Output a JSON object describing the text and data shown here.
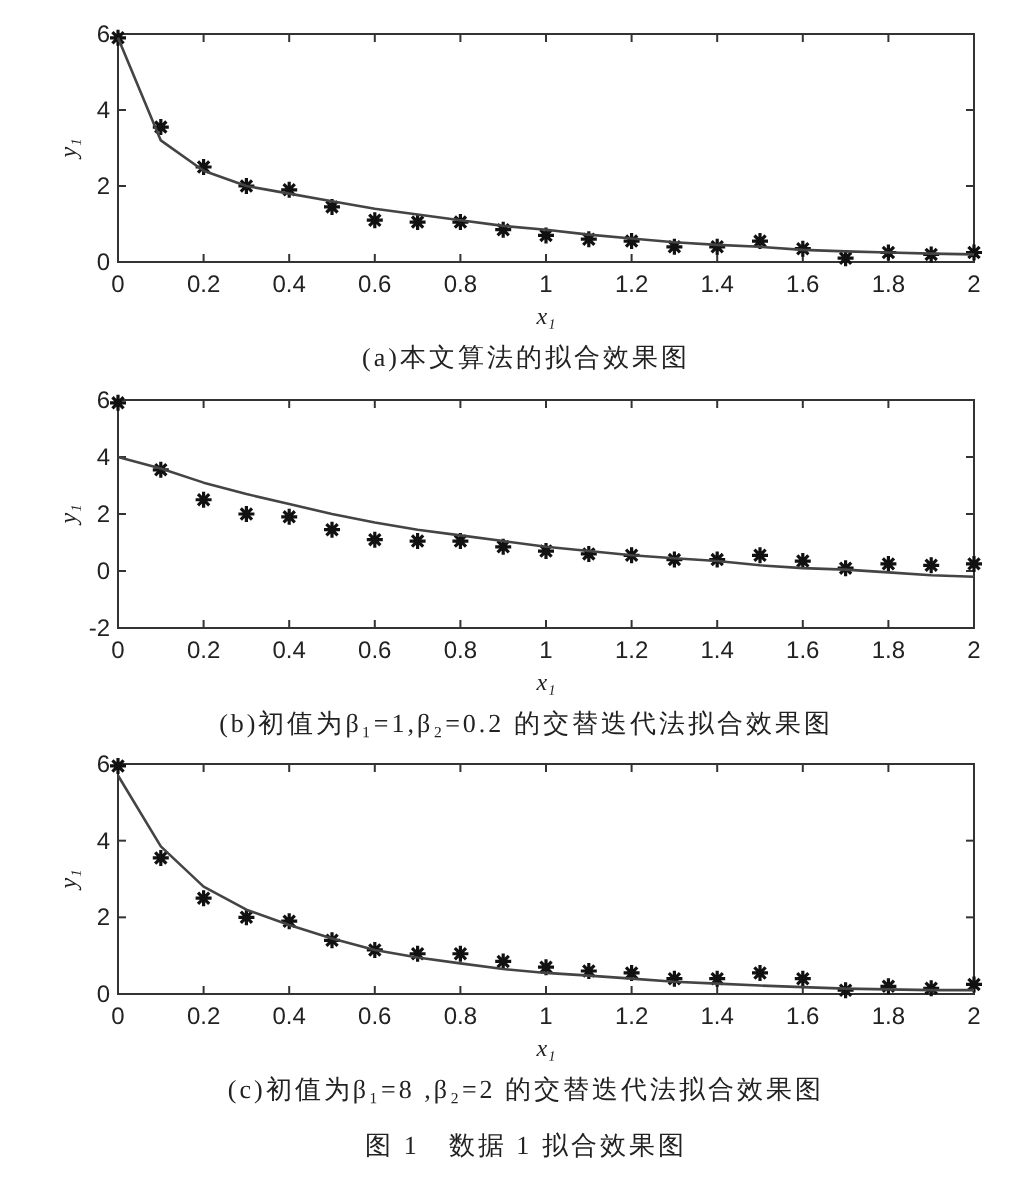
{
  "chart_data": [
    {
      "type": "scatter",
      "title": "(a)本文算法的拟合效果图",
      "xlabel": "x₁",
      "ylabel": "y₁",
      "xlim": [
        0,
        2
      ],
      "ylim": [
        0,
        6
      ],
      "xticks": [
        0,
        0.2,
        0.4,
        0.6,
        0.8,
        1,
        1.2,
        1.4,
        1.6,
        1.8,
        2
      ],
      "yticks": [
        0,
        2,
        4,
        6
      ],
      "x": [
        0,
        0.1,
        0.2,
        0.3,
        0.4,
        0.5,
        0.6,
        0.7,
        0.8,
        0.9,
        1,
        1.1,
        1.2,
        1.3,
        1.4,
        1.5,
        1.6,
        1.7,
        1.8,
        1.9,
        2
      ],
      "series": [
        {
          "marker": "cross",
          "color": "#111111",
          "values": [
            5.9,
            3.55,
            2.5,
            2.0,
            1.9,
            1.45,
            1.1,
            1.05,
            1.05,
            0.85,
            0.7,
            0.6,
            0.55,
            0.4,
            0.4,
            0.55,
            0.35,
            0.1,
            0.25,
            0.2,
            0.25
          ]
        },
        {
          "type": "line",
          "color": "#444444",
          "values": [
            5.9,
            3.2,
            2.4,
            2.0,
            1.8,
            1.6,
            1.4,
            1.25,
            1.1,
            0.95,
            0.85,
            0.72,
            0.62,
            0.52,
            0.45,
            0.4,
            0.32,
            0.28,
            0.25,
            0.22,
            0.2
          ]
        }
      ]
    },
    {
      "type": "scatter",
      "title": "(b)初值为β₁=1,β₂=0.2 的交替迭代法拟合效果图",
      "xlabel": "x₁",
      "ylabel": "y₁",
      "xlim": [
        0,
        2
      ],
      "ylim": [
        -2,
        6
      ],
      "xticks": [
        0,
        0.2,
        0.4,
        0.6,
        0.8,
        1,
        1.2,
        1.4,
        1.6,
        1.8,
        2
      ],
      "yticks": [
        -2,
        0,
        2,
        4,
        6
      ],
      "x": [
        0,
        0.1,
        0.2,
        0.3,
        0.4,
        0.5,
        0.6,
        0.7,
        0.8,
        0.9,
        1,
        1.1,
        1.2,
        1.3,
        1.4,
        1.5,
        1.6,
        1.7,
        1.8,
        1.9,
        2
      ],
      "series": [
        {
          "marker": "cross",
          "color": "#111111",
          "values": [
            5.9,
            3.55,
            2.5,
            2.0,
            1.9,
            1.45,
            1.1,
            1.05,
            1.05,
            0.85,
            0.7,
            0.6,
            0.55,
            0.4,
            0.4,
            0.55,
            0.35,
            0.1,
            0.25,
            0.2,
            0.25
          ]
        },
        {
          "type": "line",
          "color": "#444444",
          "values": [
            4.0,
            3.6,
            3.1,
            2.7,
            2.35,
            2.0,
            1.7,
            1.45,
            1.25,
            1.05,
            0.85,
            0.7,
            0.55,
            0.45,
            0.35,
            0.2,
            0.1,
            0.05,
            -0.05,
            -0.15,
            -0.2
          ]
        }
      ]
    },
    {
      "type": "scatter",
      "title": "(c)初值为β₁=8 ,β₂=2 的交替迭代法拟合效果图",
      "xlabel": "x₁",
      "ylabel": "y₁",
      "xlim": [
        0,
        2
      ],
      "ylim": [
        0,
        6
      ],
      "xticks": [
        0,
        0.2,
        0.4,
        0.6,
        0.8,
        1,
        1.2,
        1.4,
        1.6,
        1.8,
        2
      ],
      "yticks": [
        0,
        2,
        4,
        6
      ],
      "annotations": [
        "图 1　数据 1 拟合效果图"
      ],
      "x": [
        0,
        0.1,
        0.2,
        0.3,
        0.4,
        0.5,
        0.6,
        0.7,
        0.8,
        0.9,
        1,
        1.1,
        1.2,
        1.3,
        1.4,
        1.5,
        1.6,
        1.7,
        1.8,
        1.9,
        2
      ],
      "series": [
        {
          "marker": "cross",
          "color": "#111111",
          "values": [
            5.95,
            3.55,
            2.5,
            2.0,
            1.9,
            1.4,
            1.15,
            1.05,
            1.05,
            0.85,
            0.7,
            0.6,
            0.55,
            0.4,
            0.4,
            0.55,
            0.4,
            0.1,
            0.2,
            0.15,
            0.25
          ]
        },
        {
          "type": "line",
          "color": "#444444",
          "values": [
            5.7,
            3.85,
            2.8,
            2.2,
            1.8,
            1.45,
            1.15,
            0.95,
            0.8,
            0.65,
            0.55,
            0.48,
            0.4,
            0.32,
            0.27,
            0.22,
            0.18,
            0.14,
            0.12,
            0.1,
            0.1
          ]
        }
      ]
    }
  ]
}
